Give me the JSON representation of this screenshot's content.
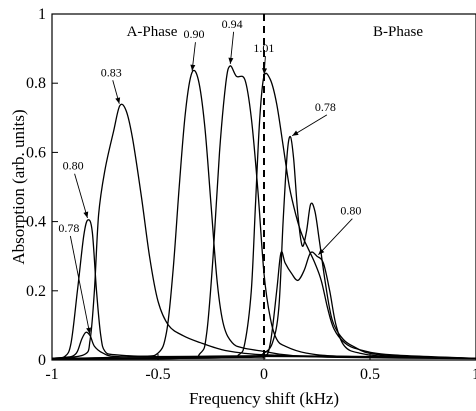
{
  "chart_data": {
    "type": "line",
    "title": "",
    "xlabel": "Frequency shift (kHz)",
    "ylabel": "Absorption (arb. units)",
    "xlim": [
      -1,
      1
    ],
    "ylim": [
      0,
      1
    ],
    "x_ticks": [
      -1,
      -0.5,
      0,
      0.5,
      1
    ],
    "x_tick_labels": [
      "-1",
      "-0.5",
      "0",
      "0.5",
      "1"
    ],
    "y_ticks": [
      0,
      0.2,
      0.4,
      0.6,
      0.8,
      1
    ],
    "y_tick_labels": [
      "0",
      "0.2",
      "0.4",
      "0.6",
      "0.8",
      "1"
    ],
    "grid": false,
    "legend": "none",
    "line_color": "#000000",
    "vertical_line": {
      "x": 0,
      "style": "dashed"
    },
    "phase_labels": [
      "A-Phase",
      "B-Phase"
    ],
    "series": [
      {
        "points": [
          [
            -1,
            0.005
          ],
          [
            -0.93,
            0.008
          ],
          [
            -0.9,
            0.012
          ],
          [
            -0.88,
            0.025
          ],
          [
            -0.86,
            0.06
          ],
          [
            -0.84,
            0.08
          ],
          [
            -0.82,
            0.07
          ],
          [
            -0.8,
            0.04
          ],
          [
            -0.76,
            0.02
          ],
          [
            -0.7,
            0.01
          ],
          [
            -0.5,
            0.008
          ],
          [
            0,
            0.01
          ],
          [
            0.5,
            0.008
          ],
          [
            1,
            0.005
          ]
        ]
      },
      {
        "points": [
          [
            -1,
            0.005
          ],
          [
            -0.94,
            0.01
          ],
          [
            -0.91,
            0.05
          ],
          [
            -0.88,
            0.2
          ],
          [
            -0.85,
            0.36
          ],
          [
            -0.83,
            0.405
          ],
          [
            -0.81,
            0.37
          ],
          [
            -0.79,
            0.2
          ],
          [
            -0.77,
            0.07
          ],
          [
            -0.75,
            0.025
          ],
          [
            -0.7,
            0.015
          ],
          [
            -0.5,
            0.01
          ],
          [
            0,
            0.012
          ],
          [
            0.5,
            0.01
          ],
          [
            1,
            0.005
          ]
        ]
      },
      {
        "points": [
          [
            -1,
            0.005
          ],
          [
            -0.85,
            0.015
          ],
          [
            -0.82,
            0.06
          ],
          [
            -0.8,
            0.2
          ],
          [
            -0.78,
            0.42
          ],
          [
            -0.75,
            0.55
          ],
          [
            -0.71,
            0.66
          ],
          [
            -0.68,
            0.735
          ],
          [
            -0.65,
            0.72
          ],
          [
            -0.62,
            0.64
          ],
          [
            -0.58,
            0.48
          ],
          [
            -0.54,
            0.3
          ],
          [
            -0.5,
            0.17
          ],
          [
            -0.45,
            0.1
          ],
          [
            -0.38,
            0.07
          ],
          [
            -0.3,
            0.05
          ],
          [
            -0.2,
            0.03
          ],
          [
            -0.1,
            0.02
          ],
          [
            0,
            0.015
          ],
          [
            0.3,
            0.01
          ],
          [
            1,
            0.005
          ]
        ]
      },
      {
        "points": [
          [
            -1,
            0.004
          ],
          [
            -0.6,
            0.01
          ],
          [
            -0.5,
            0.02
          ],
          [
            -0.46,
            0.08
          ],
          [
            -0.43,
            0.25
          ],
          [
            -0.4,
            0.5
          ],
          [
            -0.37,
            0.72
          ],
          [
            -0.34,
            0.83
          ],
          [
            -0.31,
            0.81
          ],
          [
            -0.28,
            0.68
          ],
          [
            -0.25,
            0.45
          ],
          [
            -0.22,
            0.22
          ],
          [
            -0.19,
            0.1
          ],
          [
            -0.15,
            0.05
          ],
          [
            -0.1,
            0.035
          ],
          [
            0,
            0.025
          ],
          [
            0.1,
            0.015
          ],
          [
            0.3,
            0.008
          ],
          [
            1,
            0.004
          ]
        ]
      },
      {
        "points": [
          [
            -1,
            0.004
          ],
          [
            -0.4,
            0.005
          ],
          [
            -0.3,
            0.02
          ],
          [
            -0.27,
            0.08
          ],
          [
            -0.24,
            0.3
          ],
          [
            -0.21,
            0.6
          ],
          [
            -0.18,
            0.8
          ],
          [
            -0.16,
            0.85
          ],
          [
            -0.13,
            0.82
          ],
          [
            -0.09,
            0.81
          ],
          [
            -0.06,
            0.7
          ],
          [
            -0.03,
            0.5
          ],
          [
            0,
            0.25
          ],
          [
            0.03,
            0.12
          ],
          [
            0.06,
            0.06
          ],
          [
            0.1,
            0.04
          ],
          [
            0.2,
            0.02
          ],
          [
            0.4,
            0.01
          ],
          [
            1,
            0.005
          ]
        ]
      },
      {
        "points": [
          [
            -1,
            0.004
          ],
          [
            -0.2,
            0.006
          ],
          [
            -0.12,
            0.015
          ],
          [
            -0.09,
            0.05
          ],
          [
            -0.06,
            0.2
          ],
          [
            -0.04,
            0.45
          ],
          [
            -0.02,
            0.7
          ],
          [
            0.0,
            0.82
          ],
          [
            0.03,
            0.81
          ],
          [
            0.06,
            0.74
          ],
          [
            0.09,
            0.62
          ],
          [
            0.12,
            0.5
          ],
          [
            0.15,
            0.42
          ],
          [
            0.18,
            0.36
          ],
          [
            0.21,
            0.32
          ],
          [
            0.24,
            0.28
          ],
          [
            0.27,
            0.23
          ],
          [
            0.3,
            0.15
          ],
          [
            0.33,
            0.09
          ],
          [
            0.38,
            0.05
          ],
          [
            0.45,
            0.03
          ],
          [
            0.6,
            0.015
          ],
          [
            1,
            0.005
          ]
        ]
      },
      {
        "points": [
          [
            -1,
            0.004
          ],
          [
            -0.2,
            0.006
          ],
          [
            -0.05,
            0.01
          ],
          [
            0,
            0.02
          ],
          [
            0.04,
            0.05
          ],
          [
            0.07,
            0.15
          ],
          [
            0.09,
            0.4
          ],
          [
            0.11,
            0.6
          ],
          [
            0.125,
            0.645
          ],
          [
            0.14,
            0.58
          ],
          [
            0.16,
            0.42
          ],
          [
            0.18,
            0.33
          ],
          [
            0.2,
            0.37
          ],
          [
            0.22,
            0.45
          ],
          [
            0.24,
            0.43
          ],
          [
            0.26,
            0.35
          ],
          [
            0.29,
            0.22
          ],
          [
            0.32,
            0.12
          ],
          [
            0.36,
            0.07
          ],
          [
            0.42,
            0.04
          ],
          [
            0.55,
            0.015
          ],
          [
            1,
            0.005
          ]
        ]
      },
      {
        "points": [
          [
            -1,
            0.004
          ],
          [
            -0.1,
            0.006
          ],
          [
            0,
            0.01
          ],
          [
            0.03,
            0.05
          ],
          [
            0.06,
            0.2
          ],
          [
            0.08,
            0.31
          ],
          [
            0.1,
            0.28
          ],
          [
            0.13,
            0.25
          ],
          [
            0.16,
            0.23
          ],
          [
            0.19,
            0.26
          ],
          [
            0.22,
            0.31
          ],
          [
            0.25,
            0.3
          ],
          [
            0.28,
            0.28
          ],
          [
            0.31,
            0.2
          ],
          [
            0.34,
            0.1
          ],
          [
            0.38,
            0.04
          ],
          [
            0.45,
            0.02
          ],
          [
            0.6,
            0.01
          ],
          [
            1,
            0.005
          ]
        ]
      }
    ],
    "annotations": [
      {
        "text": "0.83",
        "point_x": -0.68,
        "point_y": 0.735
      },
      {
        "text": "0.90",
        "point_x": -0.34,
        "point_y": 0.83
      },
      {
        "text": "0.94",
        "point_x": -0.16,
        "point_y": 0.85
      },
      {
        "text": "1.01",
        "point_x": 0.0,
        "point_y": 0.82
      },
      {
        "text": "0.78",
        "point_x": 0.125,
        "point_y": 0.645
      },
      {
        "text": "0.80",
        "point_x": 0.25,
        "point_y": 0.3
      },
      {
        "text": "0.80",
        "point_x": -0.83,
        "point_y": 0.405
      },
      {
        "text": "0.78",
        "point_x": -0.82,
        "point_y": 0.07
      }
    ]
  }
}
